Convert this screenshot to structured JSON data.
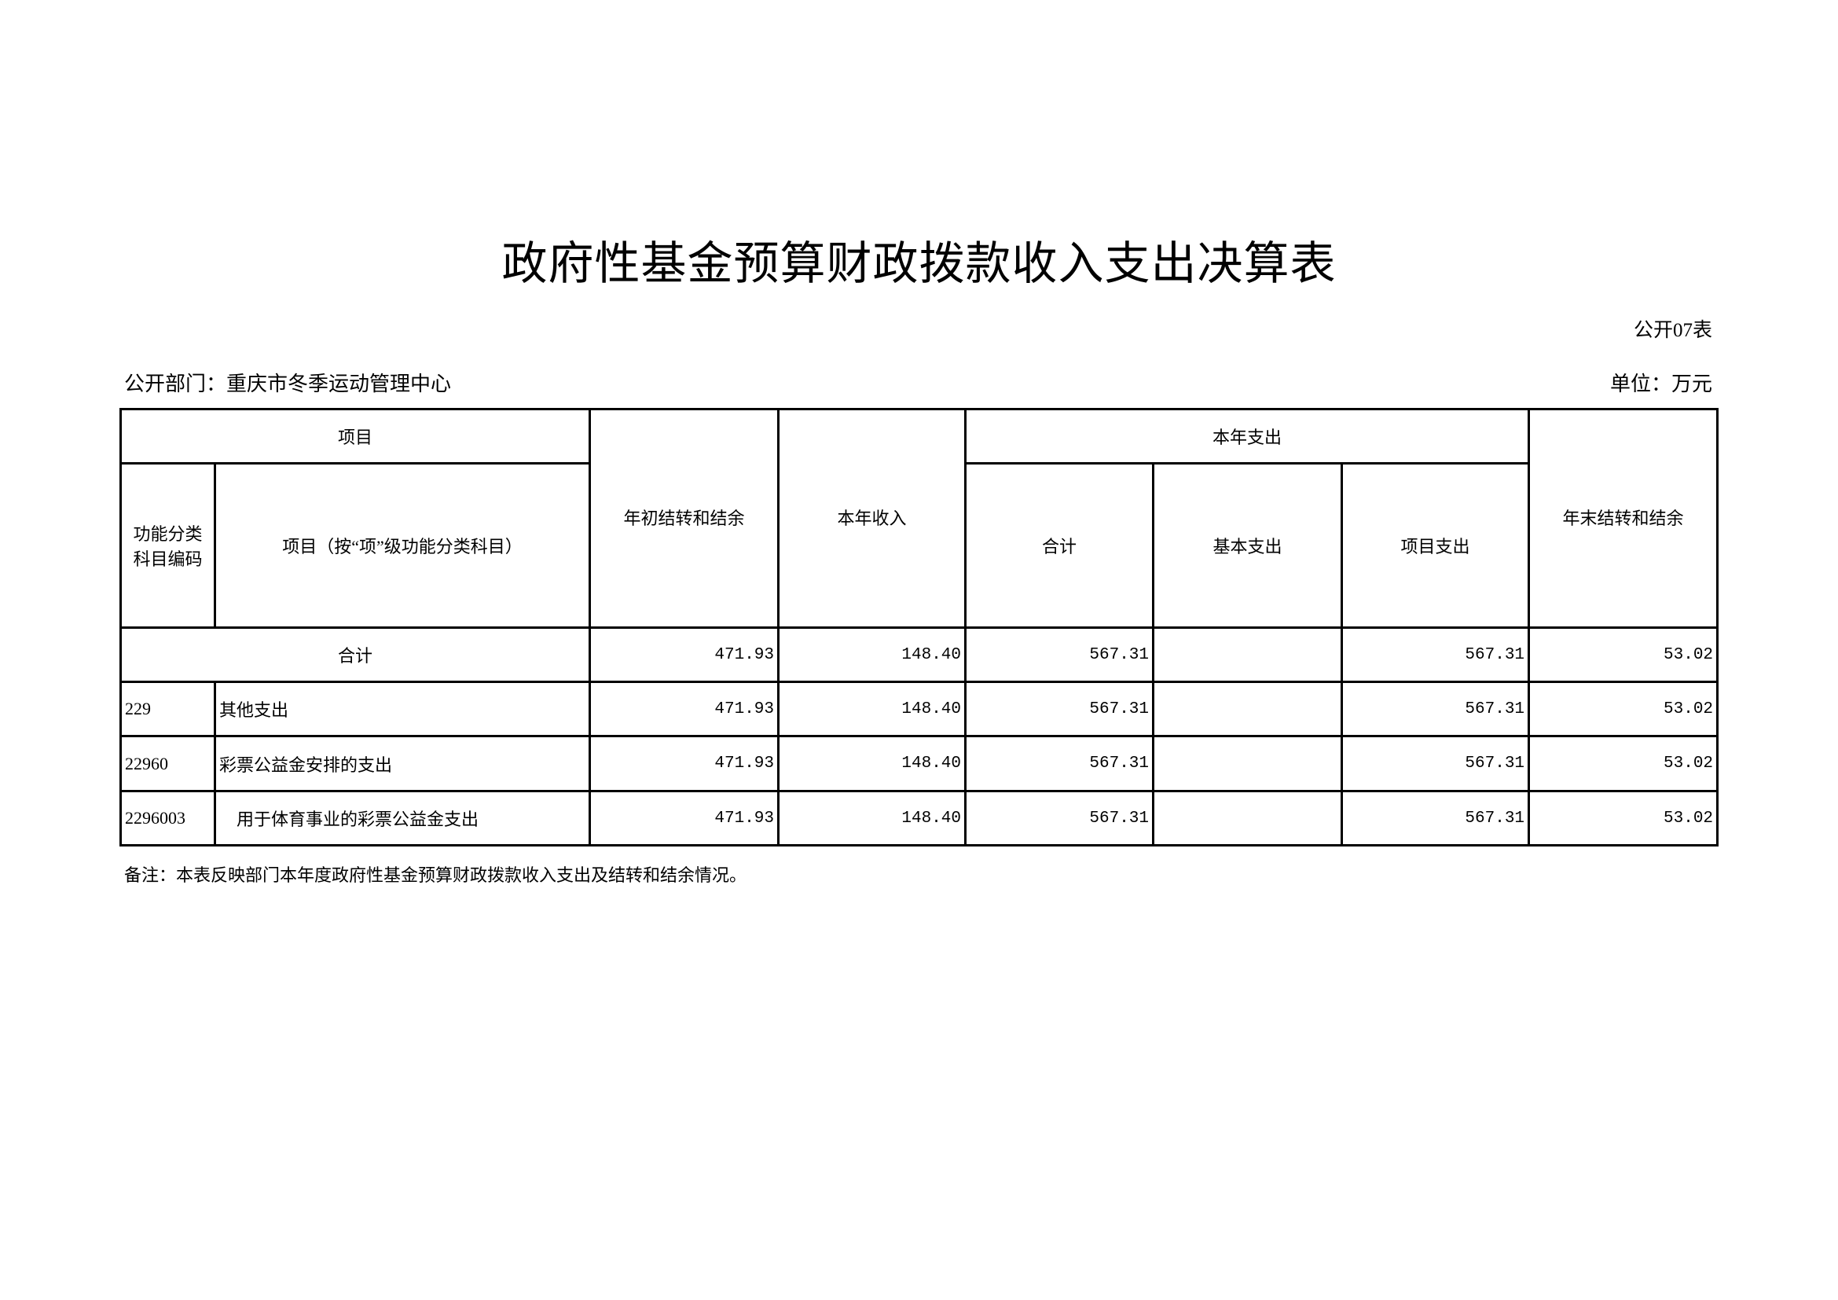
{
  "title": "政府性基金预算财政拨款收入支出决算表",
  "table_no": "公开07表",
  "department": "公开部门：重庆市冬季运动管理中心",
  "unit": "单位：万元",
  "headers": {
    "item": "项目",
    "code": "功能分类科目编码",
    "name": "项目（按“项”级功能分类科目）",
    "opening_balance": "年初结转和结余",
    "income": "本年收入",
    "expenditure": "本年支出",
    "exp_total": "合计",
    "exp_basic": "基本支出",
    "exp_project": "项目支出",
    "closing_balance": "年末结转和结余"
  },
  "total_row": {
    "label": "合计",
    "opening": "471.93",
    "income": "148.40",
    "exp_total": "567.31",
    "exp_basic": "",
    "exp_project": "567.31",
    "closing": "53.02"
  },
  "rows": [
    {
      "code": "229",
      "name": "其他支出",
      "opening": "471.93",
      "income": "148.40",
      "exp_total": "567.31",
      "exp_basic": "",
      "exp_project": "567.31",
      "closing": "53.02"
    },
    {
      "code": "22960",
      "name": "彩票公益金安排的支出",
      "opening": "471.93",
      "income": "148.40",
      "exp_total": "567.31",
      "exp_basic": "",
      "exp_project": "567.31",
      "closing": "53.02"
    },
    {
      "code": "2296003",
      "name": "用于体育事业的彩票公益金支出",
      "opening": "471.93",
      "income": "148.40",
      "exp_total": "567.31",
      "exp_basic": "",
      "exp_project": "567.31",
      "closing": "53.02"
    }
  ],
  "note": "备注：本表反映部门本年度政府性基金预算财政拨款收入支出及结转和结余情况。"
}
